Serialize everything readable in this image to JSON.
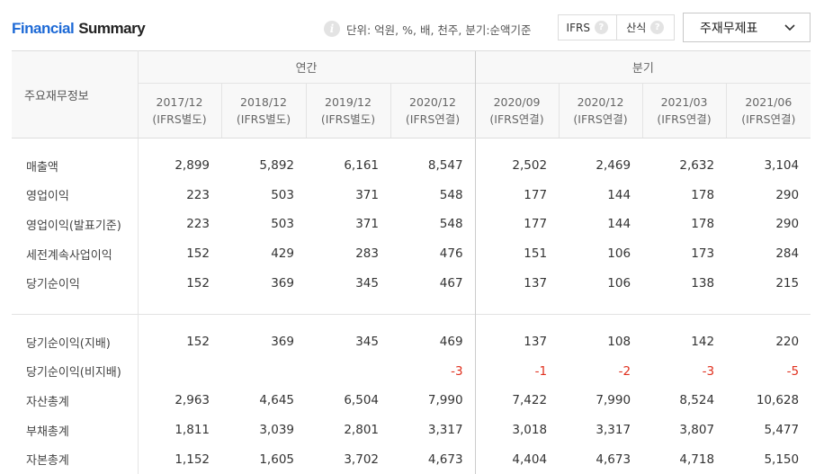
{
  "header": {
    "title_part1": "Financial",
    "title_part2": "Summary",
    "unit_text": "단위: 억원, %, 배, 천주, 분기:순액기준",
    "toggle": [
      {
        "label": "IFRS"
      },
      {
        "label": "산식"
      }
    ],
    "select_value": "주재무제표"
  },
  "table": {
    "row_header": "주요재무정보",
    "groups": {
      "annual": "연간",
      "quarter": "분기"
    },
    "periods": [
      {
        "date": "2017/12",
        "basis": "(IFRS별도)"
      },
      {
        "date": "2018/12",
        "basis": "(IFRS별도)"
      },
      {
        "date": "2019/12",
        "basis": "(IFRS별도)"
      },
      {
        "date": "2020/12",
        "basis": "(IFRS연결)"
      },
      {
        "date": "2020/09",
        "basis": "(IFRS연결)"
      },
      {
        "date": "2020/12",
        "basis": "(IFRS연결)"
      },
      {
        "date": "2021/03",
        "basis": "(IFRS연결)"
      },
      {
        "date": "2021/06",
        "basis": "(IFRS연결)"
      }
    ],
    "rows": [
      {
        "label": "매출액",
        "values": [
          "2,899",
          "5,892",
          "6,161",
          "8,547",
          "2,502",
          "2,469",
          "2,632",
          "3,104"
        ]
      },
      {
        "label": "영업이익",
        "values": [
          "223",
          "503",
          "371",
          "548",
          "177",
          "144",
          "178",
          "290"
        ]
      },
      {
        "label": "영업이익(발표기준)",
        "values": [
          "223",
          "503",
          "371",
          "548",
          "177",
          "144",
          "178",
          "290"
        ]
      },
      {
        "label": "세전계속사업이익",
        "values": [
          "152",
          "429",
          "283",
          "476",
          "151",
          "106",
          "173",
          "284"
        ]
      },
      {
        "label": "당기순이익",
        "values": [
          "152",
          "369",
          "345",
          "467",
          "137",
          "106",
          "138",
          "215"
        ]
      },
      {
        "label": "당기순이익(지배)",
        "values": [
          "152",
          "369",
          "345",
          "469",
          "137",
          "108",
          "142",
          "220"
        ]
      },
      {
        "label": "당기순이익(비지배)",
        "values": [
          "",
          "",
          "",
          "-3",
          "-1",
          "-2",
          "-3",
          "-5"
        ]
      },
      {
        "label": "자산총계",
        "values": [
          "2,963",
          "4,645",
          "6,504",
          "7,990",
          "7,422",
          "7,990",
          "8,524",
          "10,628"
        ]
      },
      {
        "label": "부채총계",
        "values": [
          "1,811",
          "3,039",
          "2,801",
          "3,317",
          "3,018",
          "3,317",
          "3,807",
          "5,477"
        ]
      },
      {
        "label": "자본총계",
        "values": [
          "1,152",
          "1,605",
          "3,702",
          "4,673",
          "4,404",
          "4,673",
          "4,718",
          "5,150"
        ]
      }
    ],
    "colors": {
      "negative": "#e0301e",
      "title_accent": "#1e6ad6"
    }
  }
}
